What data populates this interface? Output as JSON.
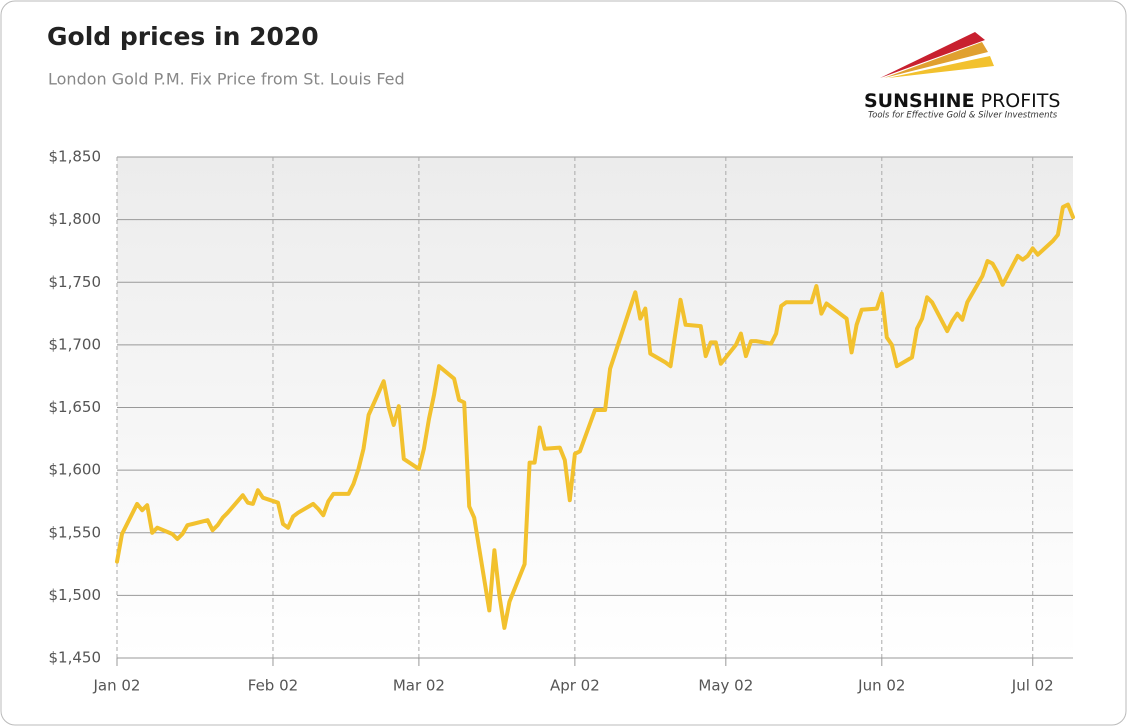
{
  "chart_data": {
    "type": "line",
    "title": "Gold prices in 2020",
    "subtitle": "London Gold P.M. Fix Price from St. Louis Fed",
    "logo": {
      "name_bold": "SUNSHINE",
      "name_regular": "PROFITS",
      "tagline": "Tools for Effective Gold & Silver Investments"
    },
    "x": [
      "Jan 02",
      "Jan 03",
      "Jan 06",
      "Jan 07",
      "Jan 08",
      "Jan 09",
      "Jan 10",
      "Jan 13",
      "Jan 14",
      "Jan 15",
      "Jan 16",
      "Jan 17",
      "Jan 20",
      "Jan 21",
      "Jan 22",
      "Jan 23",
      "Jan 24",
      "Jan 27",
      "Jan 28",
      "Jan 29",
      "Jan 30",
      "Jan 31",
      "Feb 03",
      "Feb 04",
      "Feb 05",
      "Feb 06",
      "Feb 07",
      "Feb 10",
      "Feb 11",
      "Feb 12",
      "Feb 13",
      "Feb 14",
      "Feb 17",
      "Feb 18",
      "Feb 19",
      "Feb 20",
      "Feb 21",
      "Feb 24",
      "Feb 25",
      "Feb 26",
      "Feb 27",
      "Feb 28",
      "Mar 02",
      "Mar 03",
      "Mar 04",
      "Mar 05",
      "Mar 06",
      "Mar 09",
      "Mar 10",
      "Mar 11",
      "Mar 12",
      "Mar 13",
      "Mar 16",
      "Mar 17",
      "Mar 18",
      "Mar 19",
      "Mar 20",
      "Mar 23",
      "Mar 24",
      "Mar 25",
      "Mar 26",
      "Mar 27",
      "Mar 30",
      "Mar 31",
      "Apr 01",
      "Apr 02",
      "Apr 03",
      "Apr 06",
      "Apr 07",
      "Apr 08",
      "Apr 09",
      "Apr 14",
      "Apr 15",
      "Apr 16",
      "Apr 17",
      "Apr 20",
      "Apr 21",
      "Apr 22",
      "Apr 23",
      "Apr 24",
      "Apr 27",
      "Apr 28",
      "Apr 29",
      "Apr 30",
      "May 01",
      "May 04",
      "May 05",
      "May 06",
      "May 07",
      "May 08",
      "May 11",
      "May 12",
      "May 13",
      "May 14",
      "May 15",
      "May 18",
      "May 19",
      "May 20",
      "May 21",
      "May 22",
      "May 26",
      "May 27",
      "May 28",
      "May 29",
      "Jun 01",
      "Jun 02",
      "Jun 03",
      "Jun 04",
      "Jun 05",
      "Jun 08",
      "Jun 09",
      "Jun 10",
      "Jun 11",
      "Jun 12",
      "Jun 15",
      "Jun 16",
      "Jun 17",
      "Jun 18",
      "Jun 19",
      "Jun 22",
      "Jun 23",
      "Jun 24",
      "Jun 25",
      "Jun 26",
      "Jun 29",
      "Jun 30",
      "Jul 01",
      "Jul 02",
      "Jul 03",
      "Jul 06",
      "Jul 07",
      "Jul 08",
      "Jul 09",
      "Jul 10"
    ],
    "series": [
      {
        "name": "Gold price",
        "color": "#f2c12e",
        "values": [
          1527,
          1549,
          1573,
          1568,
          1572,
          1550,
          1554,
          1549,
          1545,
          1549,
          1556,
          1557,
          1560,
          1552,
          1556,
          1562,
          1566,
          1580,
          1574,
          1573,
          1584,
          1578,
          1574,
          1557,
          1554,
          1563,
          1566,
          1573,
          1569,
          1564,
          1575,
          1581,
          1581,
          1589,
          1601,
          1617,
          1644,
          1671,
          1650,
          1636,
          1651,
          1609,
          1601,
          1617,
          1641,
          1660,
          1683,
          1673,
          1656,
          1654,
          1571,
          1562,
          1488,
          1536,
          1500,
          1474,
          1495,
          1525,
          1606,
          1606,
          1634,
          1617,
          1618,
          1608,
          1576,
          1613,
          1615,
          1648,
          1648,
          1648,
          1681,
          1742,
          1721,
          1729,
          1693,
          1686,
          1683,
          1710,
          1736,
          1716,
          1715,
          1691,
          1702,
          1702,
          1685,
          1700,
          1709,
          1691,
          1703,
          1703,
          1701,
          1709,
          1731,
          1734,
          1734,
          1734,
          1734,
          1747,
          1725,
          1733,
          1721,
          1694,
          1716,
          1728,
          1729,
          1741,
          1706,
          1700,
          1683,
          1690,
          1713,
          1721,
          1738,
          1734,
          1711,
          1719,
          1725,
          1720,
          1734,
          1755,
          1767,
          1765,
          1758,
          1748,
          1771,
          1768,
          1771,
          1777,
          1772,
          1783,
          1788,
          1810,
          1812,
          1802
        ]
      }
    ],
    "xlim": [
      "Jan 02",
      "Jul 10"
    ],
    "xticks": [
      "Jan 02",
      "Feb 02",
      "Mar 02",
      "Apr 02",
      "May 02",
      "Jun 02",
      "Jul 02"
    ],
    "ylim": [
      1450,
      1850
    ],
    "yticks": [
      {
        "value": 1450,
        "label": "$1,450"
      },
      {
        "value": 1500,
        "label": "$1,500"
      },
      {
        "value": 1550,
        "label": "$1,550"
      },
      {
        "value": 1600,
        "label": "$1,600"
      },
      {
        "value": 1650,
        "label": "$1,650"
      },
      {
        "value": 1700,
        "label": "$1,700"
      },
      {
        "value": 1750,
        "label": "$1,750"
      },
      {
        "value": 1800,
        "label": "$1,800"
      },
      {
        "value": 1850,
        "label": "$1,850"
      }
    ],
    "grid": true
  }
}
